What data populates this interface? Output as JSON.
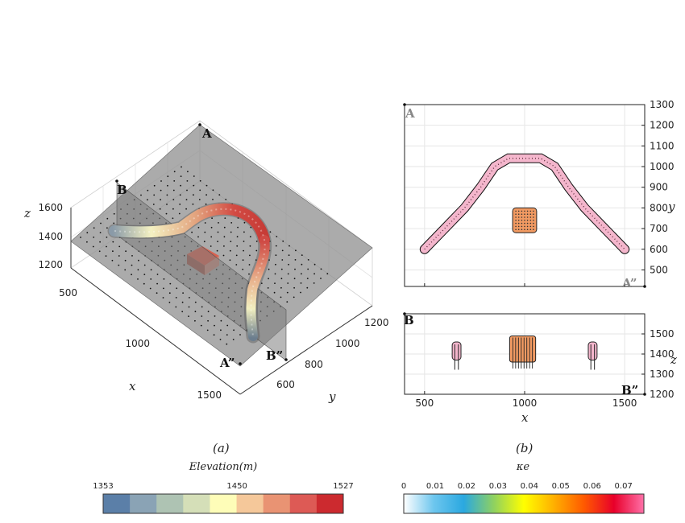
{
  "figure": {
    "panel_a_caption": "(a)",
    "panel_b_caption": "(b)"
  },
  "colorbar_left": {
    "title": "Elevation(m)",
    "tick_labels": [
      "1353",
      "1450",
      "1527"
    ],
    "ticks": [
      1353,
      1450,
      1527
    ],
    "range": [
      1353,
      1527
    ],
    "colors": [
      "#5b7fa8",
      "#8aa3b5",
      "#aec3b3",
      "#d5dfb8",
      "#fefdb8",
      "#f5c89a",
      "#e99373",
      "#dd5a55",
      "#cc2a2f"
    ]
  },
  "colorbar_right": {
    "title": "κe",
    "tick_labels": [
      "0",
      "0.01",
      "0.02",
      "0.03",
      "0.04",
      "0.05",
      "0.06",
      "0.07"
    ],
    "ticks": [
      0,
      0.01,
      0.02,
      0.03,
      0.04,
      0.05,
      0.06,
      0.07
    ],
    "range": [
      0,
      0.0765
    ],
    "colors": [
      "#ffffff",
      "#6dc6ee",
      "#2aa8e0",
      "#8fd160",
      "#ffff00",
      "#ffb000",
      "#ff5a00",
      "#e8002a",
      "#ff70a8"
    ]
  },
  "point_labels": {
    "A": "A",
    "A2": "A”",
    "B": "B",
    "B2": "B”"
  },
  "chart_data": [
    {
      "type": "3d-scatter",
      "panel": "(a)",
      "xlabel": "x",
      "ylabel": "y",
      "zlabel": "z",
      "x_ticks": [
        "500",
        "1000",
        "1500"
      ],
      "y_ticks": [
        "600",
        "800",
        "1000",
        "1200"
      ],
      "z_ticks": [
        "1200",
        "1400",
        "1600"
      ],
      "xlim": [
        400,
        1600
      ],
      "ylim": [
        500,
        1300
      ],
      "zlim": [
        1150,
        1650
      ],
      "grid": true,
      "color_variable": "Elevation(m)"
    },
    {
      "type": "scatter",
      "panel": "(b) top",
      "xlabel": "",
      "ylabel": "y",
      "xlim": [
        400,
        1600
      ],
      "ylim": [
        420,
        1300
      ],
      "x_ticks": [
        500,
        1000,
        1500
      ],
      "y_ticks": [
        500,
        600,
        700,
        800,
        900,
        1000,
        1100,
        1200,
        1300
      ],
      "y_axis_side": "right",
      "grid": true,
      "color_variable": "κe",
      "arch_path": [
        [
          500,
          600
        ],
        [
          600,
          700
        ],
        [
          700,
          800
        ],
        [
          780,
          900
        ],
        [
          850,
          1000
        ],
        [
          920,
          1040
        ],
        [
          1080,
          1040
        ],
        [
          1150,
          1000
        ],
        [
          1220,
          900
        ],
        [
          1300,
          800
        ],
        [
          1400,
          700
        ],
        [
          1500,
          600
        ]
      ],
      "block": {
        "x": [
          940,
          1060
        ],
        "y": [
          680,
          800
        ]
      },
      "corner_labels": [
        {
          "text": "A",
          "at": "top-left"
        },
        {
          "text": "A”",
          "at": "bottom-right"
        }
      ]
    },
    {
      "type": "scatter",
      "panel": "(b) bottom",
      "xlabel": "x",
      "ylabel": "z",
      "xlim": [
        400,
        1600
      ],
      "ylim": [
        1200,
        1600
      ],
      "x_ticks": [
        500,
        1000,
        1500
      ],
      "y_ticks": [
        1200,
        1300,
        1400,
        1500
      ],
      "y_axis_side": "right",
      "grid": true,
      "color_variable": "κe",
      "rods": [
        {
          "x": [
            630,
            690
          ],
          "z": [
            1370,
            1460
          ]
        },
        {
          "x": [
            1310,
            1370
          ],
          "z": [
            1370,
            1460
          ]
        }
      ],
      "block": {
        "x": [
          925,
          1055
        ],
        "z": [
          1360,
          1490
        ]
      },
      "corner_labels": [
        {
          "text": "B",
          "at": "top-left"
        },
        {
          "text": "B”",
          "at": "bottom-right"
        }
      ]
    }
  ]
}
